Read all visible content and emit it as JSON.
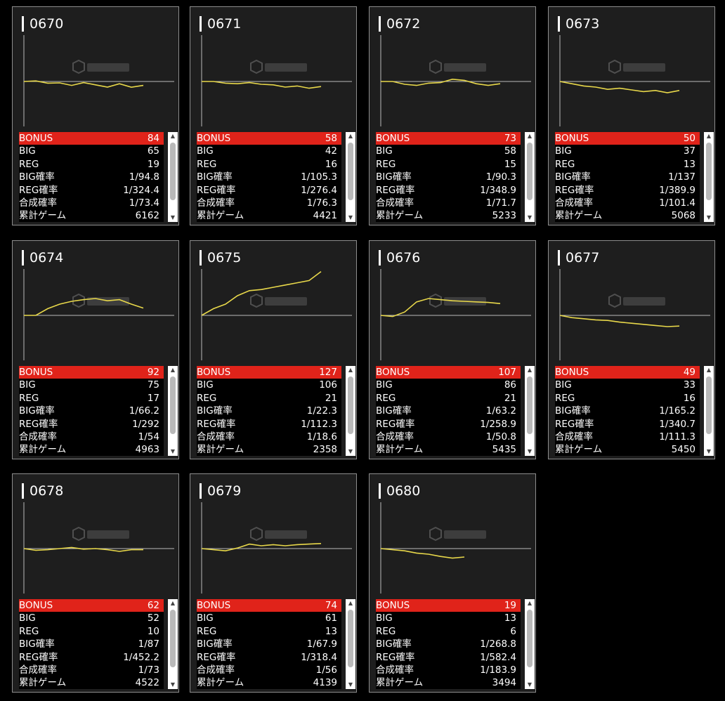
{
  "labels": [
    "BONUS",
    "BIG",
    "REG",
    "BIG確率",
    "REG確率",
    "合成確率",
    "累計ゲーム"
  ],
  "icons": {
    "scroll_up": "scroll-up-arrow-icon",
    "scroll_down": "scroll-down-arrow-icon",
    "watermark": "ps-cube-logo"
  },
  "colors": {
    "bonus_row": "#e0231a",
    "line": "#e8d84a",
    "card_bg": "#1e1e1e"
  },
  "machines": [
    {
      "id": "0670",
      "values": [
        "84",
        "65",
        "19",
        "1/94.8",
        "1/324.4",
        "1/73.4",
        "6162"
      ],
      "trend": [
        0,
        0.8,
        -2.4,
        -2,
        -5.6,
        -1.6,
        -4.8,
        -8,
        -3.2,
        -8.2,
        -5.6
      ]
    },
    {
      "id": "0671",
      "values": [
        "58",
        "42",
        "16",
        "1/105.3",
        "1/276.4",
        "1/76.3",
        "4421"
      ],
      "trend": [
        0,
        0,
        -2.4,
        -3.2,
        -1.6,
        -4,
        -4.8,
        -8,
        -6.4,
        -9.6,
        -7.2
      ]
    },
    {
      "id": "0672",
      "values": [
        "73",
        "58",
        "15",
        "1/90.3",
        "1/348.9",
        "1/71.7",
        "5233"
      ],
      "trend": [
        0,
        0,
        -4,
        -5.6,
        -2.4,
        -1.6,
        3.2,
        1.6,
        -3.2,
        -5.6,
        -3.2
      ]
    },
    {
      "id": "0673",
      "values": [
        "50",
        "37",
        "13",
        "1/137",
        "1/389.9",
        "1/101.4",
        "5068"
      ],
      "trend": [
        0,
        -3.2,
        -6.4,
        -8,
        -11.2,
        -9.6,
        -12,
        -14.4,
        -12.8,
        -16,
        -12.8
      ]
    },
    {
      "id": "0674",
      "values": [
        "92",
        "75",
        "17",
        "1/66.2",
        "1/292",
        "1/54",
        "4963"
      ],
      "trend": [
        0,
        0,
        9.6,
        16,
        20,
        22.4,
        24,
        20.8,
        22.4,
        16,
        10.4
      ]
    },
    {
      "id": "0675",
      "values": [
        "127",
        "106",
        "21",
        "1/22.3",
        "1/112.3",
        "1/18.6",
        "2358"
      ],
      "trend": [
        0,
        9.6,
        16,
        28,
        35.2,
        36.8,
        40,
        43.2,
        46.4,
        49.6,
        62.4
      ]
    },
    {
      "id": "0676",
      "values": [
        "107",
        "86",
        "21",
        "1/63.2",
        "1/258.9",
        "1/50.8",
        "5435"
      ],
      "trend": [
        0,
        -1.6,
        4.8,
        19.2,
        24,
        22.4,
        20.8,
        20,
        19.2,
        18.4,
        16.8
      ]
    },
    {
      "id": "0677",
      "values": [
        "49",
        "33",
        "16",
        "1/165.2",
        "1/340.7",
        "1/111.3",
        "5450"
      ],
      "trend": [
        0,
        -3.2,
        -4.8,
        -6.4,
        -7.2,
        -9.6,
        -11.2,
        -12.8,
        -14.4,
        -16,
        -15.2
      ]
    },
    {
      "id": "0678",
      "values": [
        "62",
        "52",
        "10",
        "1/87",
        "1/452.2",
        "1/73",
        "4522"
      ],
      "trend": [
        0,
        -2.4,
        -1.6,
        0,
        1.6,
        -0.8,
        0,
        -1.6,
        -4,
        -1.6,
        -1.6
      ]
    },
    {
      "id": "0679",
      "values": [
        "74",
        "61",
        "13",
        "1/67.9",
        "1/318.4",
        "1/56",
        "4139"
      ],
      "trend": [
        0,
        -1.6,
        -3.2,
        0.8,
        6.4,
        4,
        5.6,
        4,
        5.6,
        6.4,
        7.2
      ]
    },
    {
      "id": "0680",
      "values": [
        "19",
        "13",
        "6",
        "1/268.8",
        "1/582.4",
        "1/183.9",
        "3494"
      ],
      "trend": [
        0,
        -1.6,
        -3.2,
        -6.4,
        -8,
        -11.2,
        -13.6,
        -12
      ]
    }
  ]
}
